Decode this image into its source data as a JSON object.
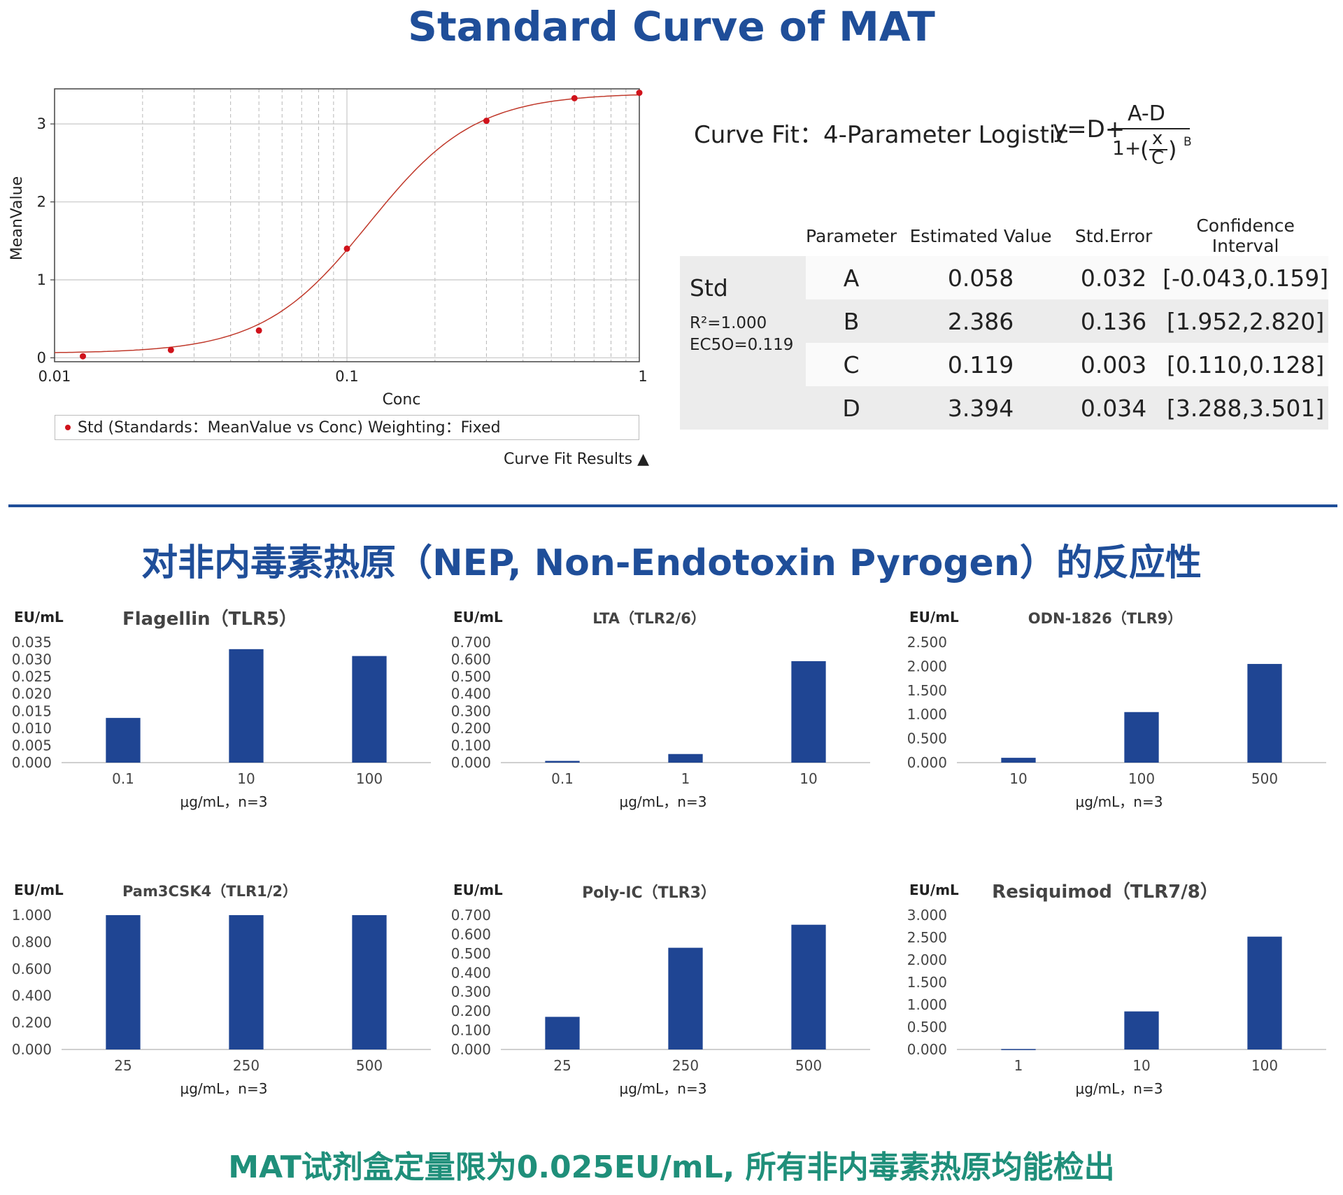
{
  "header": {
    "title": "Standard Curve of MAT"
  },
  "curve_panel": {
    "legend": "Std (Standards：MeanValue vs Conc) Weighting：Fixed",
    "results_link": "Curve Fit Results ▲"
  },
  "fit": {
    "label": "Curve Fit：4-Parameter Logistic",
    "formula": {
      "lhs": "y=D+",
      "numerator": "A-D",
      "denom_prefix": "1+",
      "x": "x",
      "c": "C",
      "exponent": "B"
    }
  },
  "param_table": {
    "headers": [
      "Parameter",
      "Estimated Value",
      "Std.Error",
      "Confidence Interval"
    ],
    "group": {
      "name": "Std",
      "r2": "R²=1.000",
      "ec50": "EC5O=0.119"
    },
    "rows": [
      {
        "param": "A",
        "value": "0.058",
        "error": "0.032",
        "ci": "[-0.043,0.159]"
      },
      {
        "param": "B",
        "value": "2.386",
        "error": "0.136",
        "ci": "[1.952,2.820]"
      },
      {
        "param": "C",
        "value": "0.119",
        "error": "0.003",
        "ci": "[0.110,0.128]"
      },
      {
        "param": "D",
        "value": "3.394",
        "error": "0.034",
        "ci": "[3.288,3.501]"
      }
    ]
  },
  "section": {
    "title": "对非内毒素热原（NEP, Non-Endotoxin Pyrogen）的反应性"
  },
  "footer": {
    "text": "MAT试剂盒定量限为0.025EU/mL, 所有非内毒素热原均能检出"
  },
  "colors": {
    "brand_blue": "#1f4e99",
    "bar_blue": "#1f4593",
    "point_red": "#d0121b",
    "curve_red": "#c0392b",
    "footer_teal": "#1f8f7a"
  },
  "chart_data": [
    {
      "type": "scatter",
      "title": "",
      "xlabel": "Conc",
      "ylabel": "MeanValue",
      "xscale": "log",
      "xlim": [
        0.01,
        1
      ],
      "ylim": [
        -0.05,
        3.45
      ],
      "xticks": [
        "0.01",
        "0.1",
        "1"
      ],
      "yticks": [
        "0",
        "1",
        "2",
        "3"
      ],
      "grid": true,
      "series": [
        {
          "name": "Std",
          "x": [
            0.0125,
            0.025,
            0.05,
            0.1,
            0.3,
            0.6,
            1
          ],
          "y": [
            0.02,
            0.1,
            0.35,
            1.4,
            3.04,
            3.33,
            3.4
          ]
        }
      ],
      "fit": {
        "model": "4PL",
        "A": 0.058,
        "B": 2.386,
        "C": 0.119,
        "D": 3.394
      }
    },
    {
      "type": "bar",
      "title": "Flagellin（TLR5）",
      "ylabel": "EU/mL",
      "xlabel": "μg/mL，n=3",
      "categories": [
        "0.1",
        "10",
        "100"
      ],
      "values": [
        0.013,
        0.033,
        0.031
      ],
      "ylim": [
        0,
        0.035
      ],
      "yticks": [
        "0.000",
        "0.005",
        "0.010",
        "0.015",
        "0.020",
        "0.025",
        "0.030",
        "0.035"
      ]
    },
    {
      "type": "bar",
      "title": "LTA（TLR2/6）",
      "ylabel": "EU/mL",
      "xlabel": "μg/mL，n=3",
      "categories": [
        "0.1",
        "1",
        "10"
      ],
      "values": [
        0.01,
        0.05,
        0.59
      ],
      "ylim": [
        0,
        0.7
      ],
      "yticks": [
        "0.000",
        "0.100",
        "0.200",
        "0.300",
        "0.400",
        "0.500",
        "0.600",
        "0.700"
      ]
    },
    {
      "type": "bar",
      "title": "ODN-1826（TLR9）",
      "ylabel": "EU/mL",
      "xlabel": "μg/mL，n=3",
      "categories": [
        "10",
        "100",
        "500"
      ],
      "values": [
        0.1,
        1.05,
        2.05
      ],
      "ylim": [
        0,
        2.5
      ],
      "yticks": [
        "0.000",
        "0.500",
        "1.000",
        "1.500",
        "2.000",
        "2.500"
      ]
    },
    {
      "type": "bar",
      "title": "Pam3CSK4（TLR1/2）",
      "ylabel": "EU/mL",
      "xlabel": "μg/mL，n=3",
      "categories": [
        "25",
        "250",
        "500"
      ],
      "values": [
        1.0,
        1.0,
        1.0
      ],
      "ylim": [
        0,
        1.0
      ],
      "yticks": [
        "0.000",
        "0.200",
        "0.400",
        "0.600",
        "0.800",
        "1.000"
      ]
    },
    {
      "type": "bar",
      "title": "Poly-IC（TLR3）",
      "ylabel": "EU/mL",
      "xlabel": "μg/mL，n=3",
      "categories": [
        "25",
        "250",
        "500"
      ],
      "values": [
        0.17,
        0.53,
        0.65
      ],
      "ylim": [
        0,
        0.7
      ],
      "yticks": [
        "0.000",
        "0.100",
        "0.200",
        "0.300",
        "0.400",
        "0.500",
        "0.600",
        "0.700"
      ]
    },
    {
      "type": "bar",
      "title": "Resiquimod（TLR7/8）",
      "ylabel": "EU/mL",
      "xlabel": "μg/mL，n=3",
      "categories": [
        "1",
        "10",
        "100"
      ],
      "values": [
        0.01,
        0.85,
        2.52
      ],
      "ylim": [
        0,
        3.0
      ],
      "yticks": [
        "0.000",
        "0.500",
        "1.000",
        "1.500",
        "2.000",
        "2.500",
        "3.000"
      ]
    }
  ]
}
